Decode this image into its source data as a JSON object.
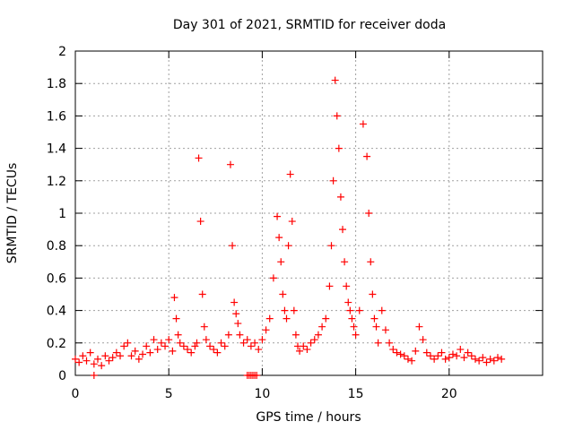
{
  "chart_data": {
    "type": "scatter",
    "title": "Day 301 of 2021, SRMTID for receiver doda",
    "xlabel": "GPS time / hours",
    "ylabel": "SRMTID / TECUs",
    "xlim": [
      0,
      25
    ],
    "ylim": [
      0,
      2
    ],
    "xticks": [
      0,
      5,
      10,
      15,
      20
    ],
    "xtick_labels": [
      "0",
      "5",
      "10",
      "15",
      "20"
    ],
    "yticks": [
      0,
      0.2,
      0.4,
      0.6,
      0.8,
      1,
      1.2,
      1.4,
      1.6,
      1.8,
      2
    ],
    "ytick_labels": [
      "0",
      "0.2",
      "0.4",
      "0.6",
      "0.8",
      "1",
      "1.2",
      "1.4",
      "1.6",
      "1.8",
      "2"
    ],
    "grid": true,
    "marker": "+",
    "color": "#ff0000",
    "series": [
      {
        "name": "SRMTID",
        "x": [
          0.0,
          0.2,
          0.4,
          0.6,
          0.8,
          1.0,
          1.2,
          1.4,
          1.6,
          1.8,
          2.0,
          2.2,
          2.4,
          2.6,
          2.8,
          3.0,
          3.2,
          3.4,
          3.6,
          3.8,
          4.0,
          4.2,
          4.4,
          4.6,
          4.8,
          5.0,
          5.2,
          5.3,
          5.4,
          5.5,
          5.6,
          5.8,
          6.0,
          6.2,
          6.4,
          6.5,
          6.6,
          6.7,
          6.8,
          6.9,
          7.0,
          7.2,
          7.4,
          7.6,
          7.8,
          8.0,
          8.2,
          8.3,
          8.4,
          8.5,
          8.6,
          8.7,
          8.8,
          9.0,
          9.2,
          9.4,
          9.6,
          9.8,
          10.0,
          10.2,
          10.4,
          10.6,
          10.8,
          10.9,
          11.0,
          11.1,
          11.2,
          11.3,
          11.4,
          11.5,
          11.6,
          11.7,
          11.8,
          11.9,
          12.0,
          12.2,
          12.4,
          12.6,
          12.8,
          13.0,
          13.2,
          13.4,
          13.6,
          13.7,
          13.8,
          13.9,
          14.0,
          14.1,
          14.2,
          14.3,
          14.4,
          14.5,
          14.6,
          14.7,
          14.8,
          14.9,
          15.0,
          15.2,
          15.4,
          15.6,
          15.7,
          15.8,
          15.9,
          16.0,
          16.1,
          16.2,
          16.4,
          16.6,
          16.8,
          17.0,
          17.2,
          17.4,
          17.6,
          17.8,
          18.0,
          18.2,
          18.4,
          18.6,
          18.8,
          19.0,
          19.2,
          19.4,
          19.6,
          19.8,
          20.0,
          20.2,
          20.4,
          20.6,
          20.8,
          21.0,
          21.2,
          21.4,
          21.6,
          21.8,
          22.0,
          22.2,
          22.4,
          22.6,
          22.8,
          1.0,
          9.2,
          9.3,
          9.4,
          9.5,
          9.6,
          9.7
        ],
        "y": [
          0.1,
          0.08,
          0.12,
          0.09,
          0.14,
          0.07,
          0.1,
          0.06,
          0.12,
          0.09,
          0.11,
          0.14,
          0.12,
          0.18,
          0.2,
          0.12,
          0.15,
          0.1,
          0.13,
          0.18,
          0.14,
          0.22,
          0.16,
          0.2,
          0.18,
          0.22,
          0.15,
          0.48,
          0.35,
          0.25,
          0.2,
          0.18,
          0.16,
          0.14,
          0.18,
          0.2,
          1.34,
          0.95,
          0.5,
          0.3,
          0.22,
          0.18,
          0.16,
          0.14,
          0.2,
          0.18,
          0.25,
          1.3,
          0.8,
          0.45,
          0.38,
          0.32,
          0.25,
          0.2,
          0.22,
          0.18,
          0.2,
          0.16,
          0.22,
          0.28,
          0.35,
          0.6,
          0.98,
          0.85,
          0.7,
          0.5,
          0.4,
          0.35,
          0.8,
          1.24,
          0.95,
          0.4,
          0.25,
          0.18,
          0.15,
          0.18,
          0.16,
          0.2,
          0.22,
          0.25,
          0.3,
          0.35,
          0.55,
          0.8,
          1.2,
          1.82,
          1.6,
          1.4,
          1.1,
          0.9,
          0.7,
          0.55,
          0.45,
          0.4,
          0.35,
          0.3,
          0.25,
          0.4,
          1.55,
          1.35,
          1.0,
          0.7,
          0.5,
          0.35,
          0.3,
          0.2,
          0.4,
          0.28,
          0.2,
          0.16,
          0.14,
          0.13,
          0.12,
          0.1,
          0.09,
          0.15,
          0.3,
          0.22,
          0.14,
          0.12,
          0.1,
          0.12,
          0.14,
          0.1,
          0.11,
          0.13,
          0.12,
          0.16,
          0.11,
          0.14,
          0.12,
          0.1,
          0.09,
          0.11,
          0.08,
          0.1,
          0.09,
          0.11,
          0.1,
          0.0,
          0.0,
          0.0,
          0.0,
          0.0,
          0.0,
          0.0
        ]
      }
    ]
  }
}
